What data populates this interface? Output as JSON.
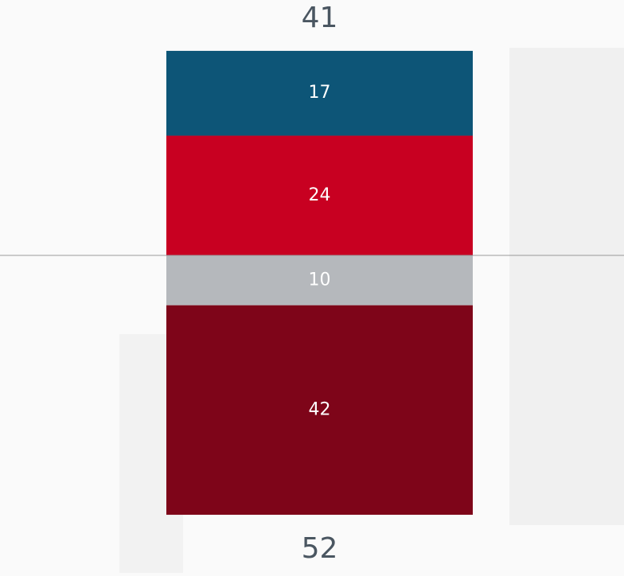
{
  "chart_data": {
    "type": "diverging_bar",
    "above": {
      "values": [
        17,
        24
      ],
      "colors": [
        "#0d5577",
        "#c80021"
      ],
      "total": 41
    },
    "below": {
      "values": [
        10,
        42
      ],
      "colors": [
        "#b5b8bc",
        "#7e0519"
      ],
      "total": 52
    },
    "baseline_color": "#999999"
  }
}
